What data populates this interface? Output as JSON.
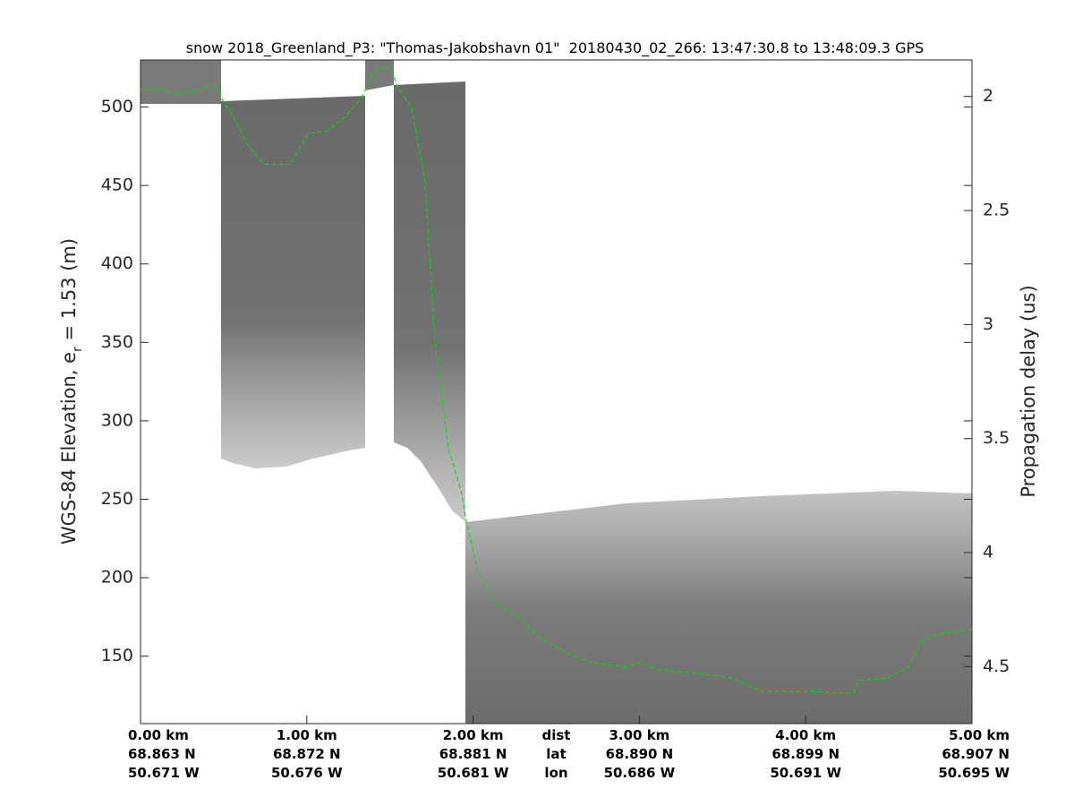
{
  "chart_data": {
    "type": "line",
    "title": "snow 2018_Greenland_P3: \"Thomas-Jakobshavn 01\"  20180430_02_266: 13:47:30.8 to 13:48:09.3 GPS",
    "ylabel": {
      "before": "WGS-84 Elevation, e",
      "subscript": "r",
      "after": " = 1.53 (m)"
    },
    "y2label": "Propagation delay (us)",
    "xlim": [
      0,
      5
    ],
    "xticks": [
      {
        "value": 0,
        "label": "0.00 km"
      },
      {
        "value": 1,
        "label": "1.00 km"
      },
      {
        "value": 2,
        "label": "2.00 km"
      },
      {
        "value": 3,
        "label": "3.00 km"
      },
      {
        "value": 4,
        "label": "4.00 km"
      },
      {
        "value": 5,
        "label": "5.00 km"
      }
    ],
    "lat_labels": [
      "68.863 N",
      "68.872 N",
      "68.881 N",
      "68.890 N",
      "68.899 N",
      "68.907 N"
    ],
    "lon_labels": [
      "50.671 W",
      "50.676 W",
      "50.681 W",
      "50.686 W",
      "50.691 W",
      "50.695 W"
    ],
    "x_label_rows": [
      "dist",
      "lat",
      "lon"
    ],
    "ylim": [
      107,
      530
    ],
    "yticks": [
      150,
      200,
      250,
      300,
      350,
      400,
      450,
      500
    ],
    "y2lim": [
      1.84,
      4.75
    ],
    "y2ticks": [
      2,
      2.5,
      3,
      3.5,
      4,
      4.5
    ],
    "y2_reversed": true,
    "series": [
      {
        "color": "#00e000",
        "dashed": true,
        "x": [
          0,
          0.15,
          0.23,
          0.34,
          0.45,
          0.49,
          0.56,
          0.64,
          0.74,
          0.9,
          1.01,
          1.12,
          1.23,
          1.33,
          1.42,
          1.5,
          1.55,
          1.63,
          1.71,
          1.77,
          1.85,
          1.93,
          1.96,
          2.03,
          2.14,
          2.28,
          2.38,
          2.55,
          2.71,
          2.92,
          3.0,
          3.11,
          3.35,
          3.57,
          3.73,
          4.0,
          4.16,
          4.29,
          4.32,
          4.48,
          4.62,
          4.7,
          4.81,
          5.0
        ],
        "values": [
          511.4,
          510.8,
          508,
          510.8,
          514.8,
          505,
          493.7,
          476.6,
          463.5,
          463.5,
          483.5,
          484.6,
          493.7,
          506.3,
          525,
          525,
          512,
          499.4,
          453.8,
          351,
          282.8,
          254.3,
          235.5,
          203,
          183,
          174.4,
          163,
          152.8,
          146,
          143.1,
          146,
          141.4,
          139.1,
          135.7,
          127.7,
          127.7,
          126.6,
          126.6,
          134.6,
          135.7,
          143.1,
          160,
          164.2,
          167
        ]
      }
    ]
  }
}
